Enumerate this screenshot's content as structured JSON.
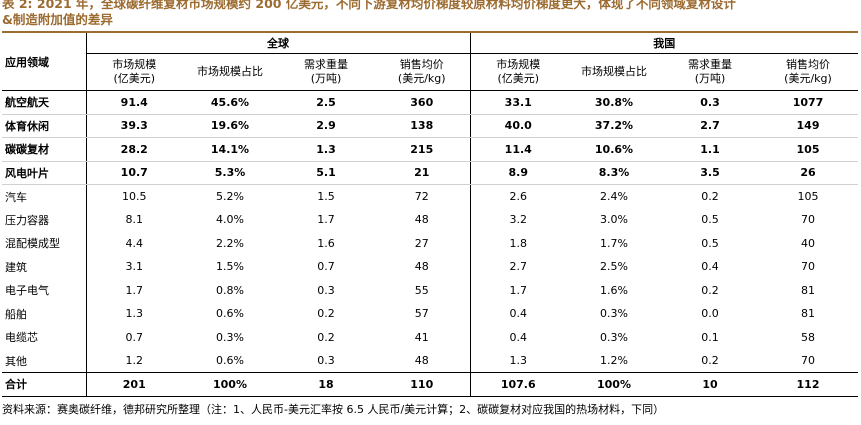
{
  "caption": {
    "line1": "表 2:  2021 年，全球碳纤维复材市场规模约 200 亿美元，不同下游复材均价梯度较原材料均价梯度更大，体现了不同领域复材设计",
    "line2": "&制造附加值的差异"
  },
  "table": {
    "row_header": "应用领域",
    "group_global": "全球",
    "group_china": "我国",
    "col_headers": [
      {
        "line1": "市场规模",
        "line2": "(亿美元)"
      },
      {
        "line1": "市场规模占比",
        "line2": ""
      },
      {
        "line1": "需求重量",
        "line2": "(万吨)"
      },
      {
        "line1": "销售均价",
        "line2": "(美元/kg)"
      },
      {
        "line1": "市场规模",
        "line2": "(亿美元)"
      },
      {
        "line1": "市场规模占比",
        "line2": ""
      },
      {
        "line1": "需求重量",
        "line2": "(万吨)"
      },
      {
        "line1": "销售均价",
        "line2": "(美元/kg)"
      }
    ],
    "rows": [
      {
        "name": "航空航天",
        "bold": true,
        "values": [
          "91.4",
          "45.6%",
          "2.5",
          "360",
          "33.1",
          "30.8%",
          "0.3",
          "1077"
        ]
      },
      {
        "name": "体育休闲",
        "bold": true,
        "values": [
          "39.3",
          "19.6%",
          "2.9",
          "138",
          "40.0",
          "37.2%",
          "2.7",
          "149"
        ]
      },
      {
        "name": "碳碳复材",
        "bold": true,
        "values": [
          "28.2",
          "14.1%",
          "1.3",
          "215",
          "11.4",
          "10.6%",
          "1.1",
          "105"
        ]
      },
      {
        "name": "风电叶片",
        "bold": true,
        "values": [
          "10.7",
          "5.3%",
          "5.1",
          "21",
          "8.9",
          "8.3%",
          "3.5",
          "26"
        ]
      },
      {
        "name": "汽车",
        "bold": false,
        "values": [
          "10.5",
          "5.2%",
          "1.5",
          "72",
          "2.6",
          "2.4%",
          "0.2",
          "105"
        ]
      },
      {
        "name": "压力容器",
        "bold": false,
        "values": [
          "8.1",
          "4.0%",
          "1.7",
          "48",
          "3.2",
          "3.0%",
          "0.5",
          "70"
        ]
      },
      {
        "name": "混配模成型",
        "bold": false,
        "values": [
          "4.4",
          "2.2%",
          "1.6",
          "27",
          "1.8",
          "1.7%",
          "0.5",
          "40"
        ]
      },
      {
        "name": "建筑",
        "bold": false,
        "values": [
          "3.1",
          "1.5%",
          "0.7",
          "48",
          "2.7",
          "2.5%",
          "0.4",
          "70"
        ]
      },
      {
        "name": "电子电气",
        "bold": false,
        "values": [
          "1.7",
          "0.8%",
          "0.3",
          "55",
          "1.7",
          "1.6%",
          "0.2",
          "81"
        ]
      },
      {
        "name": "船舶",
        "bold": false,
        "values": [
          "1.3",
          "0.6%",
          "0.2",
          "57",
          "0.4",
          "0.3%",
          "0.0",
          "81"
        ]
      },
      {
        "name": "电缆芯",
        "bold": false,
        "values": [
          "0.7",
          "0.3%",
          "0.2",
          "41",
          "0.4",
          "0.3%",
          "0.1",
          "58"
        ]
      },
      {
        "name": "其他",
        "bold": false,
        "values": [
          "1.2",
          "0.6%",
          "0.3",
          "48",
          "1.3",
          "1.2%",
          "0.2",
          "70"
        ]
      }
    ],
    "total": {
      "name": "合计",
      "values": [
        "201",
        "100%",
        "18",
        "110",
        "107.6",
        "100%",
        "10",
        "112"
      ]
    }
  },
  "source": "资料来源：赛奥碳纤维，德邦研究所整理（注：1、人民币-美元汇率按 6.5 人民币/美元计算；2、碳碳复材对应我国的热场材料，下同）",
  "colors": {
    "caption": "#9c6b30",
    "rule": "#9c6b30",
    "text": "#000000"
  }
}
